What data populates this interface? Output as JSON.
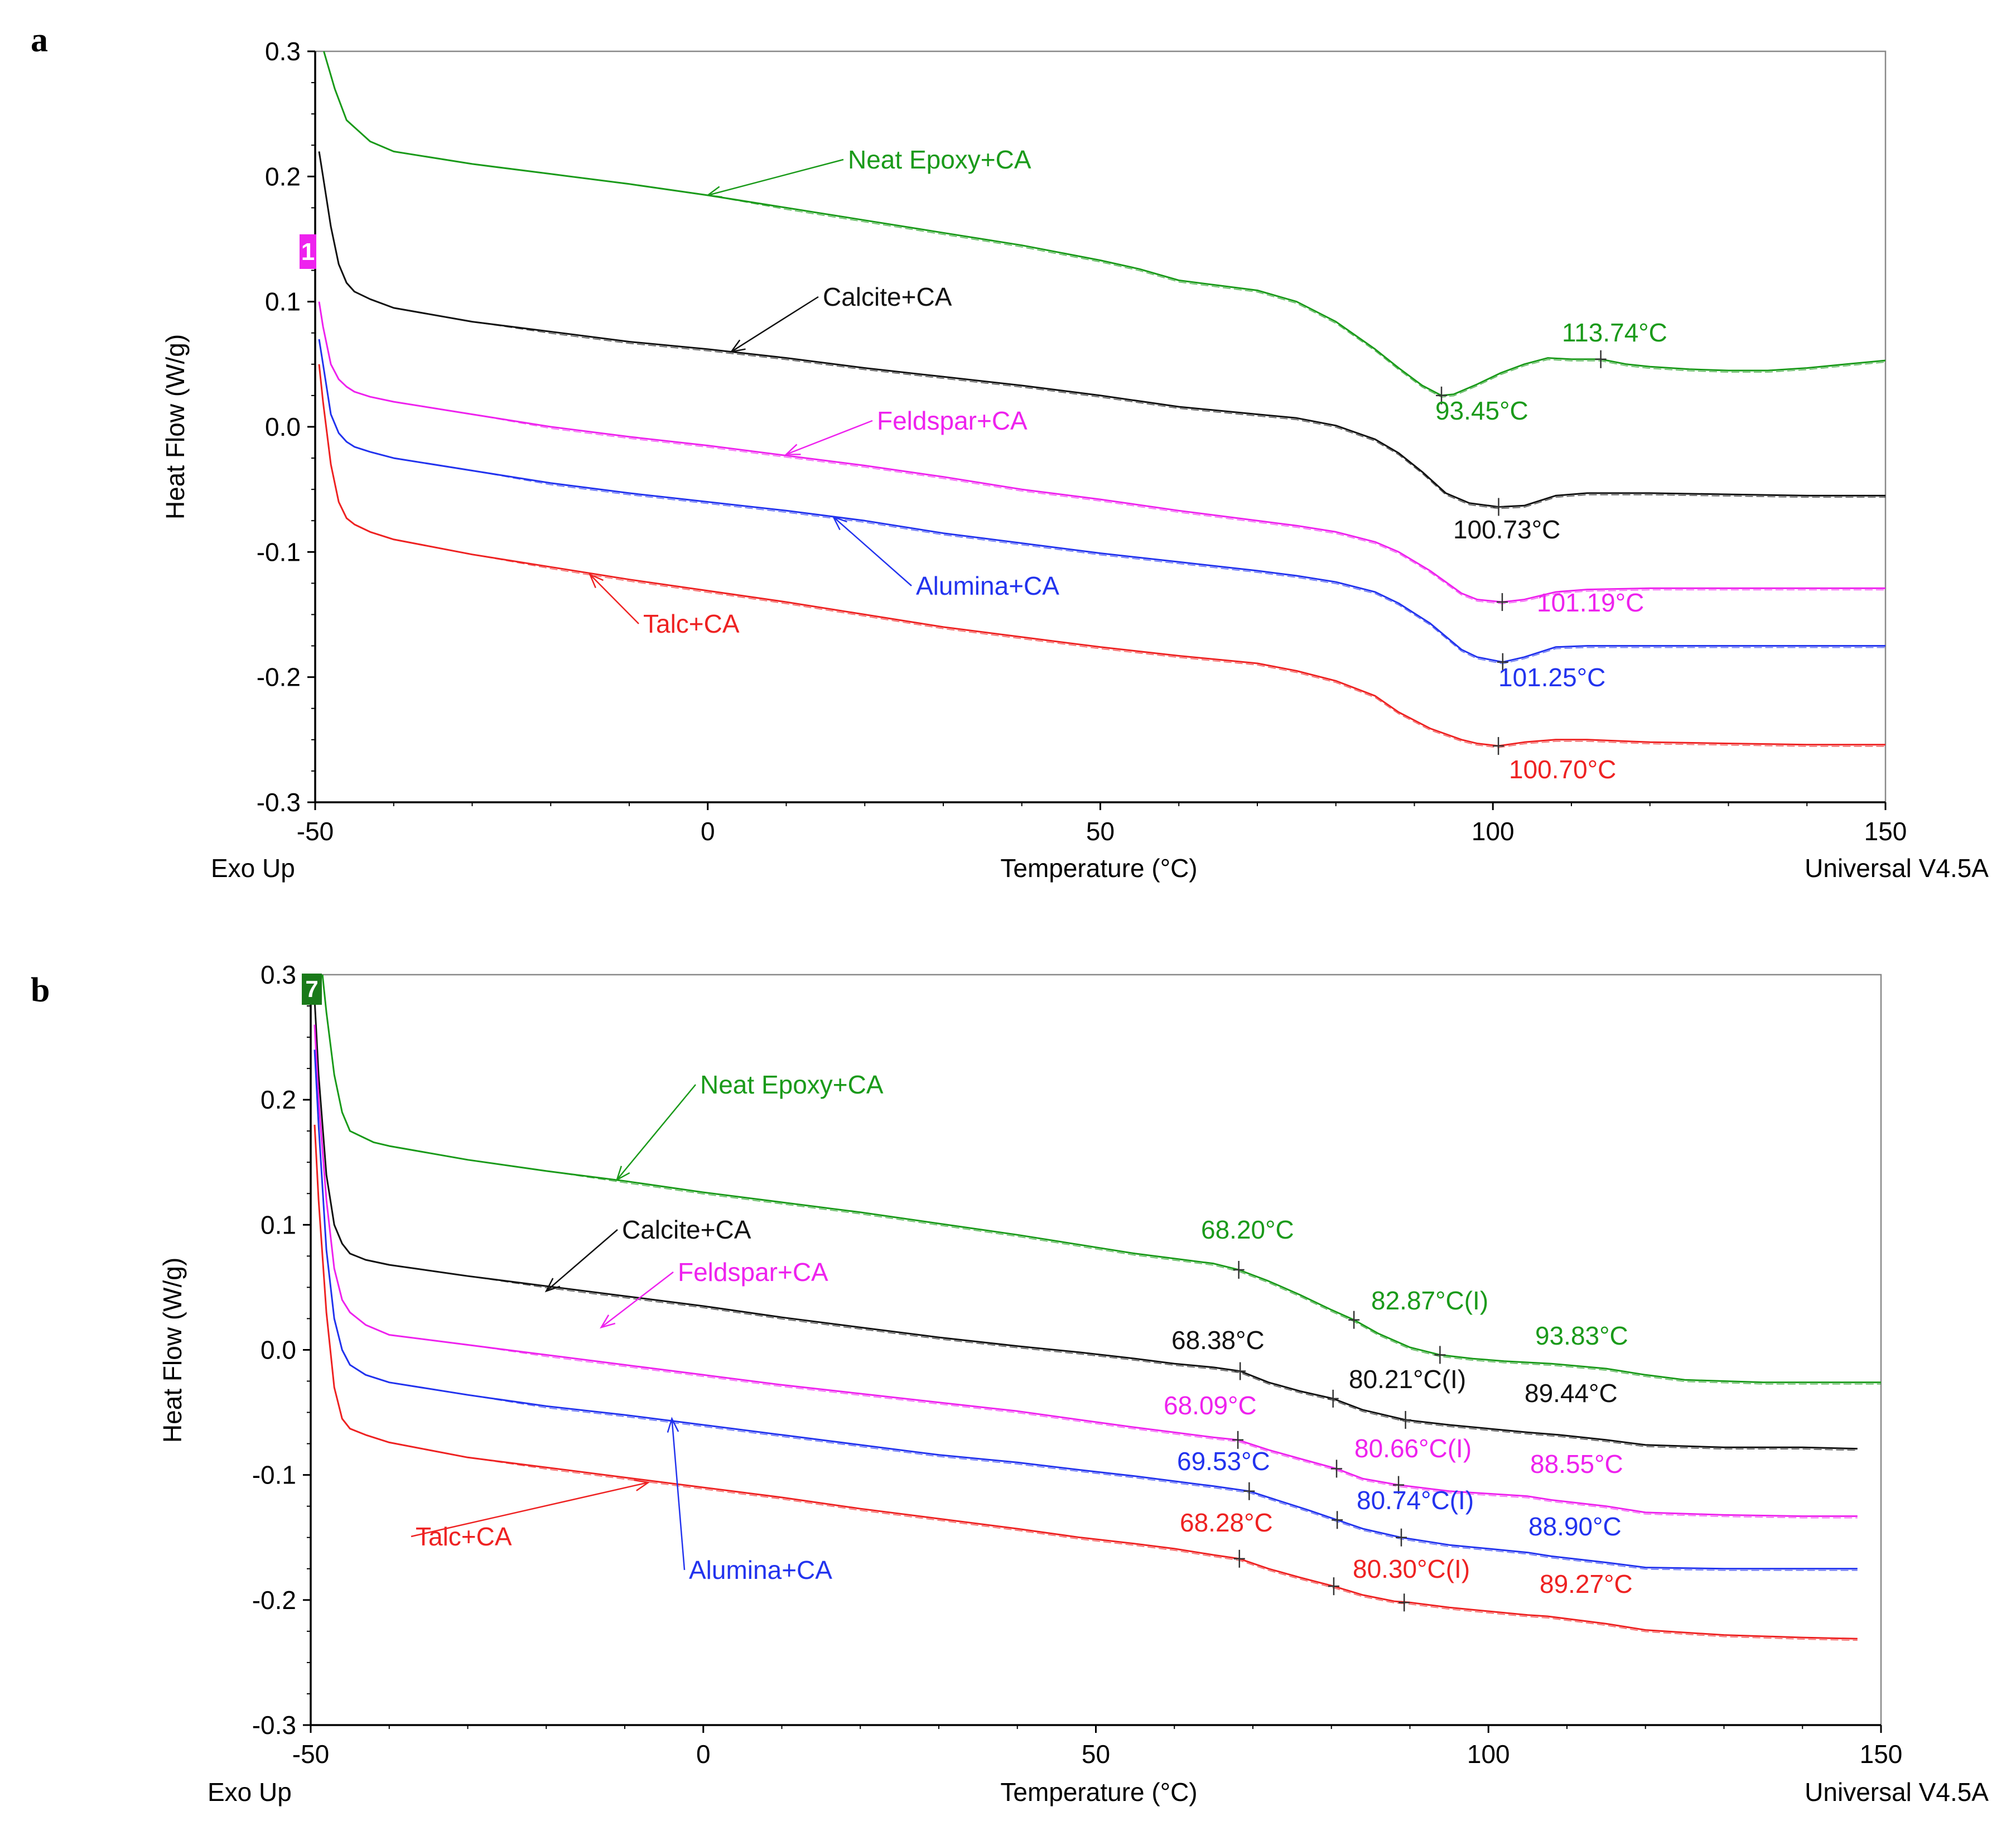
{
  "chart_data": [
    {
      "panel": "a",
      "type": "line",
      "xlabel": "Temperature (°C)",
      "ylabel": "Heat Flow (W/g)",
      "xlim": [
        -50,
        150
      ],
      "ylim": [
        -0.3,
        0.3
      ],
      "xticks": [
        -50,
        0,
        50,
        100,
        150
      ],
      "yticks": [
        -0.3,
        -0.2,
        -0.1,
        0.0,
        0.1,
        0.2,
        0.3
      ],
      "ytick_labels": [
        "-0.3",
        "-0.2",
        "-0.1",
        "0.0",
        "0.1",
        "0.2",
        "0.3"
      ],
      "footer_left": "Exo Up",
      "footer_right": "Universal V4.5A",
      "start_marker": "1",
      "series": [
        {
          "name": "Neat Epoxy+CA",
          "color": "#1a9a1a",
          "x": [
            -48.9,
            -47.5,
            -46,
            -43,
            -40,
            -30,
            -20,
            -10,
            0,
            10,
            20,
            30,
            40,
            50,
            55,
            60,
            65,
            70,
            75,
            80,
            85,
            88,
            91,
            93.45,
            95,
            98,
            101,
            104,
            107,
            110,
            113.74,
            117,
            120,
            125,
            130,
            135,
            140,
            145,
            150
          ],
          "y": [
            0.3,
            0.27,
            0.245,
            0.228,
            0.22,
            0.21,
            0.202,
            0.194,
            0.185,
            0.175,
            0.165,
            0.155,
            0.145,
            0.133,
            0.126,
            0.117,
            0.113,
            0.109,
            0.1,
            0.084,
            0.062,
            0.047,
            0.033,
            0.025,
            0.026,
            0.034,
            0.043,
            0.05,
            0.055,
            0.054,
            0.054,
            0.05,
            0.048,
            0.046,
            0.045,
            0.045,
            0.047,
            0.05,
            0.053
          ],
          "annotations": [
            {
              "label": "93.45°C",
              "x": 93.45,
              "y": 0.025
            },
            {
              "label": "113.74°C",
              "x": 113.74,
              "y": 0.054
            }
          ],
          "arrow_to": {
            "x": 0,
            "y": 0.185
          }
        },
        {
          "name": "Calcite+CA",
          "color": "#111111",
          "x": [
            -49.5,
            -49,
            -48,
            -47,
            -46,
            -45,
            -43,
            -40,
            -30,
            -20,
            -10,
            0,
            10,
            20,
            30,
            40,
            50,
            60,
            70,
            75,
            80,
            85,
            88,
            91,
            94,
            97,
            100.73,
            104,
            108,
            112,
            120,
            130,
            140,
            150
          ],
          "y": [
            0.22,
            0.2,
            0.16,
            0.13,
            0.115,
            0.108,
            0.102,
            0.095,
            0.084,
            0.076,
            0.068,
            0.062,
            0.055,
            0.047,
            0.04,
            0.033,
            0.025,
            0.016,
            0.01,
            0.007,
            0.001,
            -0.01,
            -0.021,
            -0.036,
            -0.053,
            -0.061,
            -0.064,
            -0.063,
            -0.055,
            -0.053,
            -0.053,
            -0.054,
            -0.055,
            -0.055
          ],
          "annotations": [
            {
              "label": "100.73°C",
              "x": 100.73,
              "y": -0.064
            }
          ],
          "arrow_to": {
            "x": 3,
            "y": 0.06
          }
        },
        {
          "name": "Feldspar+CA",
          "color": "#ee22ee",
          "x": [
            -49.5,
            -49,
            -48,
            -47,
            -46,
            -45,
            -43,
            -40,
            -30,
            -20,
            -10,
            0,
            10,
            20,
            30,
            40,
            50,
            60,
            70,
            75,
            80,
            85,
            88,
            92,
            96,
            98,
            101.19,
            104,
            108,
            112,
            120,
            130,
            140,
            150
          ],
          "y": [
            0.1,
            0.08,
            0.05,
            0.038,
            0.032,
            0.028,
            0.024,
            0.02,
            0.01,
            0.0,
            -0.008,
            -0.015,
            -0.023,
            -0.031,
            -0.04,
            -0.05,
            -0.058,
            -0.067,
            -0.075,
            -0.079,
            -0.084,
            -0.092,
            -0.1,
            -0.115,
            -0.133,
            -0.138,
            -0.14,
            -0.138,
            -0.132,
            -0.13,
            -0.129,
            -0.129,
            -0.129,
            -0.129
          ],
          "annotations": [
            {
              "label": "101.19°C",
              "x": 101.19,
              "y": -0.14
            }
          ],
          "arrow_to": {
            "x": 10,
            "y": -0.022
          }
        },
        {
          "name": "Alumina+CA",
          "color": "#2233ee",
          "x": [
            -49.5,
            -49,
            -48,
            -47,
            -46,
            -45,
            -43,
            -40,
            -30,
            -20,
            -10,
            0,
            10,
            20,
            30,
            40,
            50,
            60,
            70,
            75,
            80,
            85,
            88,
            92,
            96,
            98,
            101.25,
            104,
            108,
            112,
            120,
            130,
            140,
            150
          ],
          "y": [
            0.07,
            0.05,
            0.01,
            -0.005,
            -0.012,
            -0.016,
            -0.02,
            -0.025,
            -0.035,
            -0.045,
            -0.053,
            -0.06,
            -0.067,
            -0.075,
            -0.085,
            -0.093,
            -0.101,
            -0.108,
            -0.115,
            -0.119,
            -0.124,
            -0.132,
            -0.141,
            -0.157,
            -0.178,
            -0.184,
            -0.188,
            -0.184,
            -0.176,
            -0.175,
            -0.175,
            -0.175,
            -0.175,
            -0.175
          ],
          "annotations": [
            {
              "label": "101.25°C",
              "x": 101.25,
              "y": -0.188
            }
          ],
          "arrow_to": {
            "x": 16,
            "y": -0.072
          }
        },
        {
          "name": "Talc+CA",
          "color": "#ee2222",
          "x": [
            -49.5,
            -49,
            -48,
            -47,
            -46,
            -45,
            -43,
            -40,
            -30,
            -20,
            -10,
            0,
            10,
            20,
            30,
            40,
            50,
            60,
            70,
            75,
            80,
            85,
            88,
            92,
            96,
            98,
            100.7,
            104,
            108,
            112,
            120,
            130,
            140,
            150
          ],
          "y": [
            0.05,
            0.02,
            -0.03,
            -0.06,
            -0.073,
            -0.078,
            -0.084,
            -0.09,
            -0.102,
            -0.112,
            -0.122,
            -0.131,
            -0.14,
            -0.15,
            -0.16,
            -0.168,
            -0.176,
            -0.183,
            -0.189,
            -0.195,
            -0.203,
            -0.215,
            -0.228,
            -0.241,
            -0.25,
            -0.253,
            -0.255,
            -0.252,
            -0.25,
            -0.25,
            -0.252,
            -0.253,
            -0.254,
            -0.254
          ],
          "annotations": [
            {
              "label": "100.70°C",
              "x": 100.7,
              "y": -0.255
            }
          ],
          "arrow_to": {
            "x": -15,
            "y": -0.118
          }
        }
      ]
    },
    {
      "panel": "b",
      "type": "line",
      "xlabel": "Temperature (°C)",
      "ylabel": "Heat Flow (W/g)",
      "xlim": [
        -50,
        150
      ],
      "ylim": [
        -0.3,
        0.3
      ],
      "xticks": [
        -50,
        0,
        50,
        100,
        150
      ],
      "yticks": [
        -0.3,
        -0.2,
        -0.1,
        0.0,
        0.1,
        0.2,
        0.3
      ],
      "ytick_labels": [
        "-0.3",
        "-0.2",
        "-0.1",
        "0.0",
        "0.1",
        "0.2",
        "0.3"
      ],
      "footer_left": "Exo Up",
      "footer_right": "Universal V4.5A",
      "start_marker": "7",
      "series": [
        {
          "name": "Neat Epoxy+CA",
          "color": "#1a9a1a",
          "x": [
            -48.5,
            -48,
            -47,
            -46,
            -45,
            -42,
            -40,
            -30,
            -20,
            -10,
            0,
            10,
            20,
            30,
            40,
            48,
            55,
            60,
            65,
            68.2,
            72,
            76,
            80,
            82.87,
            86,
            90,
            93.83,
            98,
            102,
            108,
            115,
            120,
            125,
            130,
            135,
            140,
            145,
            150
          ],
          "y": [
            0.3,
            0.27,
            0.22,
            0.19,
            0.175,
            0.166,
            0.163,
            0.152,
            0.143,
            0.135,
            0.126,
            0.118,
            0.11,
            0.101,
            0.092,
            0.084,
            0.077,
            0.073,
            0.069,
            0.064,
            0.055,
            0.044,
            0.032,
            0.024,
            0.013,
            0.002,
            -0.004,
            -0.007,
            -0.009,
            -0.011,
            -0.015,
            -0.02,
            -0.024,
            -0.025,
            -0.026,
            -0.026,
            -0.026,
            -0.026
          ],
          "annotations": [
            {
              "label": "68.20°C",
              "x": 68.2,
              "y": 0.064
            },
            {
              "label": "82.87°C(I)",
              "x": 82.87,
              "y": 0.024
            },
            {
              "label": "93.83°C",
              "x": 93.83,
              "y": -0.004
            }
          ],
          "arrow_to": {
            "x": -11,
            "y": 0.136
          }
        },
        {
          "name": "Calcite+CA",
          "color": "#111111",
          "x": [
            -49.5,
            -49,
            -48,
            -47,
            -46,
            -45,
            -43,
            -40,
            -30,
            -20,
            -10,
            0,
            10,
            20,
            30,
            40,
            48,
            55,
            60,
            65,
            68.38,
            72,
            76,
            80.21,
            84,
            89.44,
            95,
            100,
            105,
            109,
            115,
            120,
            130,
            140,
            147
          ],
          "y": [
            0.28,
            0.22,
            0.14,
            0.1,
            0.085,
            0.077,
            0.072,
            0.068,
            0.059,
            0.051,
            0.043,
            0.035,
            0.026,
            0.018,
            0.01,
            0.003,
            -0.002,
            -0.007,
            -0.011,
            -0.014,
            -0.017,
            -0.026,
            -0.033,
            -0.039,
            -0.048,
            -0.056,
            -0.06,
            -0.063,
            -0.066,
            -0.068,
            -0.072,
            -0.076,
            -0.078,
            -0.078,
            -0.079
          ],
          "annotations": [
            {
              "label": "68.38°C",
              "x": 68.38,
              "y": -0.017
            },
            {
              "label": "80.21°C(I)",
              "x": 80.21,
              "y": -0.039
            },
            {
              "label": "89.44°C",
              "x": 89.44,
              "y": -0.056
            }
          ],
          "arrow_to": {
            "x": -20,
            "y": 0.047
          }
        },
        {
          "name": "Feldspar+CA",
          "color": "#ee22ee",
          "x": [
            -49.5,
            -49,
            -48,
            -47,
            -46,
            -45,
            -43,
            -40,
            -30,
            -20,
            -10,
            0,
            10,
            20,
            30,
            40,
            48,
            55,
            60,
            65,
            68.09,
            72,
            76,
            80.66,
            84,
            88.55,
            95,
            100,
            105,
            108,
            115,
            120,
            130,
            140,
            147
          ],
          "y": [
            0.26,
            0.2,
            0.12,
            0.065,
            0.04,
            0.03,
            0.02,
            0.012,
            0.004,
            -0.004,
            -0.012,
            -0.02,
            -0.028,
            -0.035,
            -0.042,
            -0.049,
            -0.056,
            -0.062,
            -0.066,
            -0.07,
            -0.072,
            -0.08,
            -0.087,
            -0.095,
            -0.103,
            -0.108,
            -0.113,
            -0.115,
            -0.117,
            -0.12,
            -0.125,
            -0.13,
            -0.132,
            -0.133,
            -0.133
          ],
          "annotations": [
            {
              "label": "68.09°C",
              "x": 68.09,
              "y": -0.072
            },
            {
              "label": "80.66°C(I)",
              "x": 80.66,
              "y": -0.095
            },
            {
              "label": "88.55°C",
              "x": 88.55,
              "y": -0.108
            }
          ],
          "arrow_to": {
            "x": -13,
            "y": 0.018
          }
        },
        {
          "name": "Alumina+CA",
          "color": "#2233ee",
          "x": [
            -49.5,
            -49,
            -48,
            -47,
            -46,
            -45,
            -43,
            -40,
            -30,
            -20,
            -10,
            0,
            10,
            20,
            30,
            40,
            48,
            55,
            60,
            65,
            69.53,
            73,
            77,
            80.74,
            84,
            88.9,
            95,
            100,
            105,
            108,
            115,
            120,
            130,
            140,
            147
          ],
          "y": [
            0.24,
            0.18,
            0.08,
            0.025,
            0.0,
            -0.012,
            -0.02,
            -0.026,
            -0.036,
            -0.045,
            -0.052,
            -0.06,
            -0.068,
            -0.076,
            -0.084,
            -0.09,
            -0.096,
            -0.101,
            -0.105,
            -0.109,
            -0.113,
            -0.12,
            -0.128,
            -0.136,
            -0.143,
            -0.15,
            -0.156,
            -0.159,
            -0.162,
            -0.165,
            -0.17,
            -0.174,
            -0.175,
            -0.175,
            -0.175
          ],
          "annotations": [
            {
              "label": "69.53°C",
              "x": 69.53,
              "y": -0.113
            },
            {
              "label": "80.74°C(I)",
              "x": 80.74,
              "y": -0.136
            },
            {
              "label": "88.90°C",
              "x": 88.9,
              "y": -0.15
            }
          ],
          "arrow_to": {
            "x": -4,
            "y": -0.055
          }
        },
        {
          "name": "Talc+CA",
          "color": "#ee2222",
          "x": [
            -49.5,
            -49,
            -48,
            -47,
            -46,
            -45,
            -43,
            -40,
            -30,
            -20,
            -10,
            0,
            10,
            20,
            30,
            40,
            48,
            55,
            60,
            65,
            68.28,
            72,
            76,
            80.3,
            84,
            88,
            90,
            95,
            100,
            105,
            107.5,
            115,
            120,
            130,
            140,
            147
          ],
          "y": [
            0.18,
            0.12,
            0.03,
            -0.03,
            -0.055,
            -0.063,
            -0.068,
            -0.074,
            -0.086,
            -0.094,
            -0.102,
            -0.11,
            -0.118,
            -0.127,
            -0.135,
            -0.143,
            -0.15,
            -0.155,
            -0.159,
            -0.164,
            -0.167,
            -0.175,
            -0.182,
            -0.189,
            -0.196,
            -0.201,
            -0.202,
            -0.206,
            -0.209,
            -0.212,
            -0.213,
            -0.219,
            -0.224,
            -0.228,
            -0.23,
            -0.231
          ],
          "annotations": [
            {
              "label": "68.28°C",
              "x": 68.28,
              "y": -0.167
            },
            {
              "label": "80.30°C(I)",
              "x": 80.3,
              "y": -0.189
            },
            {
              "label": "89.27°C",
              "x": 89.27,
              "y": -0.202
            }
          ],
          "arrow_to": {
            "x": -7,
            "y": -0.106
          }
        }
      ]
    }
  ]
}
